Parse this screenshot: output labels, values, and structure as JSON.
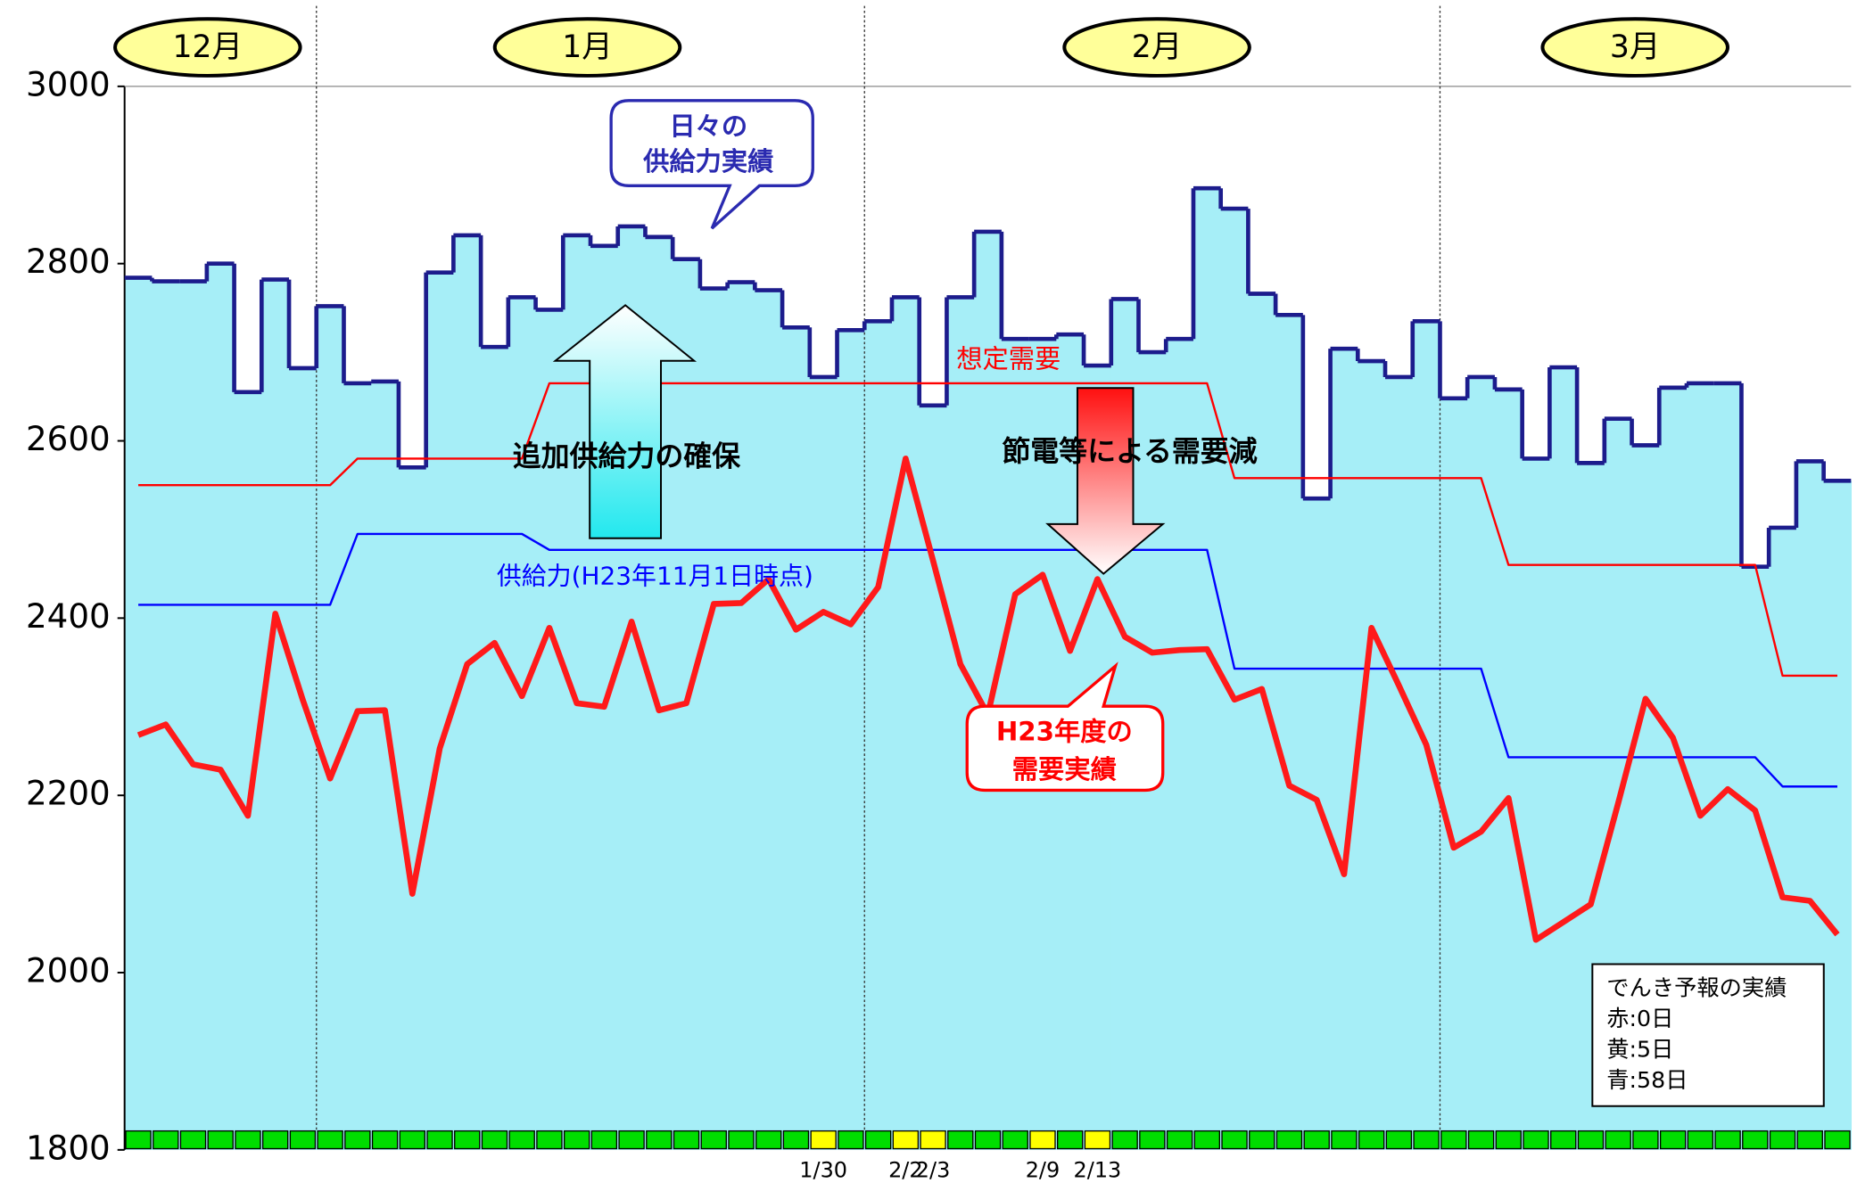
{
  "chart_data": {
    "type": "line",
    "categories": [
      null,
      null,
      null,
      null,
      null,
      null,
      null,
      null,
      null,
      null,
      null,
      null,
      null,
      null,
      null,
      null,
      null,
      null,
      null,
      null,
      null,
      null,
      null,
      null,
      null,
      "1/30",
      null,
      null,
      "2/2",
      "2/3",
      null,
      null,
      null,
      "2/9",
      null,
      "2/13",
      null,
      null,
      null,
      null,
      null,
      null,
      null,
      null,
      null,
      null,
      null,
      null,
      null,
      null,
      null,
      null,
      null,
      null,
      null,
      null,
      null,
      null,
      null,
      null,
      null,
      null,
      null
    ],
    "months": [
      "12月",
      "1月",
      "2月",
      "3月"
    ],
    "ylim": [
      1800,
      3000
    ],
    "yticks": [
      1800,
      2000,
      2200,
      2400,
      2600,
      2800,
      3000
    ],
    "series": [
      {
        "name": [
          "日々の",
          "供給力実績"
        ],
        "style": "step",
        "color": "#1c1c8c",
        "fill": "#a6eef7",
        "values": [
          2784,
          2780,
          2780,
          2800,
          2655,
          2782,
          2682,
          2752,
          2665,
          2667,
          2570,
          2790,
          2832,
          2706,
          2762,
          2748,
          2832,
          2820,
          2842,
          2830,
          2805,
          2772,
          2779,
          2770,
          2728,
          2672,
          2725,
          2735,
          2762,
          2640,
          2762,
          2836,
          2715,
          2715,
          2720,
          2685,
          2760,
          2700,
          2715,
          2885,
          2862,
          2766,
          2742,
          2535,
          2704,
          2690,
          2672,
          2735,
          2648,
          2672,
          2658,
          2580,
          2683,
          2575,
          2625,
          2595,
          2660,
          2665,
          2665,
          2458,
          2502,
          2577,
          2555
        ]
      },
      {
        "name": "想定需要",
        "style": "thin",
        "color": "#ff0000",
        "values": [
          2550,
          2550,
          2550,
          2550,
          2550,
          2550,
          2550,
          2550,
          2580,
          2580,
          2580,
          2580,
          2580,
          2580,
          2580,
          2665,
          2665,
          2665,
          2665,
          2665,
          2665,
          2665,
          2665,
          2665,
          2665,
          2665,
          2665,
          2665,
          2665,
          2665,
          2665,
          2665,
          2665,
          2665,
          2665,
          2665,
          2665,
          2665,
          2665,
          2665,
          2558,
          2558,
          2558,
          2558,
          2558,
          2558,
          2558,
          2558,
          2558,
          2558,
          2460,
          2460,
          2460,
          2460,
          2460,
          2460,
          2460,
          2460,
          2460,
          2460,
          2335,
          2335,
          2335
        ]
      },
      {
        "name": "供給力(H23年11月1日時点)",
        "style": "thin",
        "color": "#0000ff",
        "values": [
          2415,
          2415,
          2415,
          2415,
          2415,
          2415,
          2415,
          2415,
          2495,
          2495,
          2495,
          2495,
          2495,
          2495,
          2495,
          2477,
          2477,
          2477,
          2477,
          2477,
          2477,
          2477,
          2477,
          2477,
          2477,
          2477,
          2477,
          2477,
          2477,
          2477,
          2477,
          2477,
          2477,
          2477,
          2477,
          2477,
          2477,
          2477,
          2477,
          2477,
          2343,
          2343,
          2343,
          2343,
          2343,
          2343,
          2343,
          2343,
          2343,
          2343,
          2243,
          2243,
          2243,
          2243,
          2243,
          2243,
          2243,
          2243,
          2243,
          2243,
          2210,
          2210,
          2210
        ]
      },
      {
        "name": [
          "H23年度の",
          "需要実績"
        ],
        "style": "thick",
        "color": "#ff1a1a",
        "values": [
          2268,
          2280,
          2235,
          2229,
          2177,
          2405,
          2308,
          2219,
          2295,
          2296,
          2089,
          2253,
          2348,
          2372,
          2312,
          2389,
          2304,
          2300,
          2396,
          2296,
          2304,
          2416,
          2417,
          2444,
          2387,
          2407,
          2393,
          2435,
          2580,
          2465,
          2348,
          2291,
          2427,
          2449,
          2363,
          2444,
          2379,
          2361,
          2364,
          2365,
          2308,
          2320,
          2211,
          2195,
          2111,
          2389,
          2324,
          2257,
          2141,
          2159,
          2197,
          2037,
          2057,
          2077,
          2191,
          2309,
          2265,
          2177,
          2207,
          2183,
          2085,
          2081,
          2043
        ]
      }
    ],
    "day_colors": [
      "#00dd00",
      "#00dd00",
      "#00dd00",
      "#00dd00",
      "#00dd00",
      "#00dd00",
      "#00dd00",
      "#00dd00",
      "#00dd00",
      "#00dd00",
      "#00dd00",
      "#00dd00",
      "#00dd00",
      "#00dd00",
      "#00dd00",
      "#00dd00",
      "#00dd00",
      "#00dd00",
      "#00dd00",
      "#00dd00",
      "#00dd00",
      "#00dd00",
      "#00dd00",
      "#00dd00",
      "#00dd00",
      "#ffff00",
      "#00dd00",
      "#00dd00",
      "#ffff00",
      "#ffff00",
      "#00dd00",
      "#00dd00",
      "#00dd00",
      "#ffff00",
      "#00dd00",
      "#ffff00",
      "#00dd00",
      "#00dd00",
      "#00dd00",
      "#00dd00",
      "#00dd00",
      "#00dd00",
      "#00dd00",
      "#00dd00",
      "#00dd00",
      "#00dd00",
      "#00dd00",
      "#00dd00",
      "#00dd00",
      "#00dd00",
      "#00dd00",
      "#00dd00",
      "#00dd00",
      "#00dd00",
      "#00dd00",
      "#00dd00",
      "#00dd00",
      "#00dd00",
      "#00dd00",
      "#00dd00",
      "#00dd00",
      "#00dd00",
      "#00dd00"
    ],
    "annotations": [
      "追加供給力の確保",
      "節電等による需要減"
    ],
    "legend_box": {
      "title": "でんき予報の実績",
      "lines": [
        "赤:0日",
        "黄:5日",
        "青:58日"
      ]
    }
  }
}
